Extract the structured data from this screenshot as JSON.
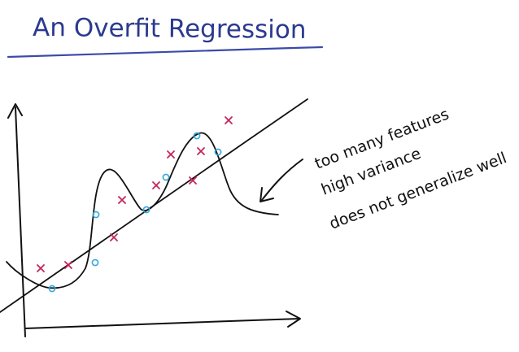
{
  "title": "An Overfit Regression",
  "annotation_lines": [
    "too many features",
    "high variance",
    "does not generalize well"
  ],
  "colors": {
    "title": "#2b3a8f",
    "underline": "#3c4aa8",
    "ink": "#111111",
    "cross": "#c4245a",
    "circle": "#36a6dc"
  },
  "icons": {
    "cross_marker": "x-mark-icon",
    "circle_marker": "circle-marker-icon",
    "arrow": "arrow-icon"
  }
}
